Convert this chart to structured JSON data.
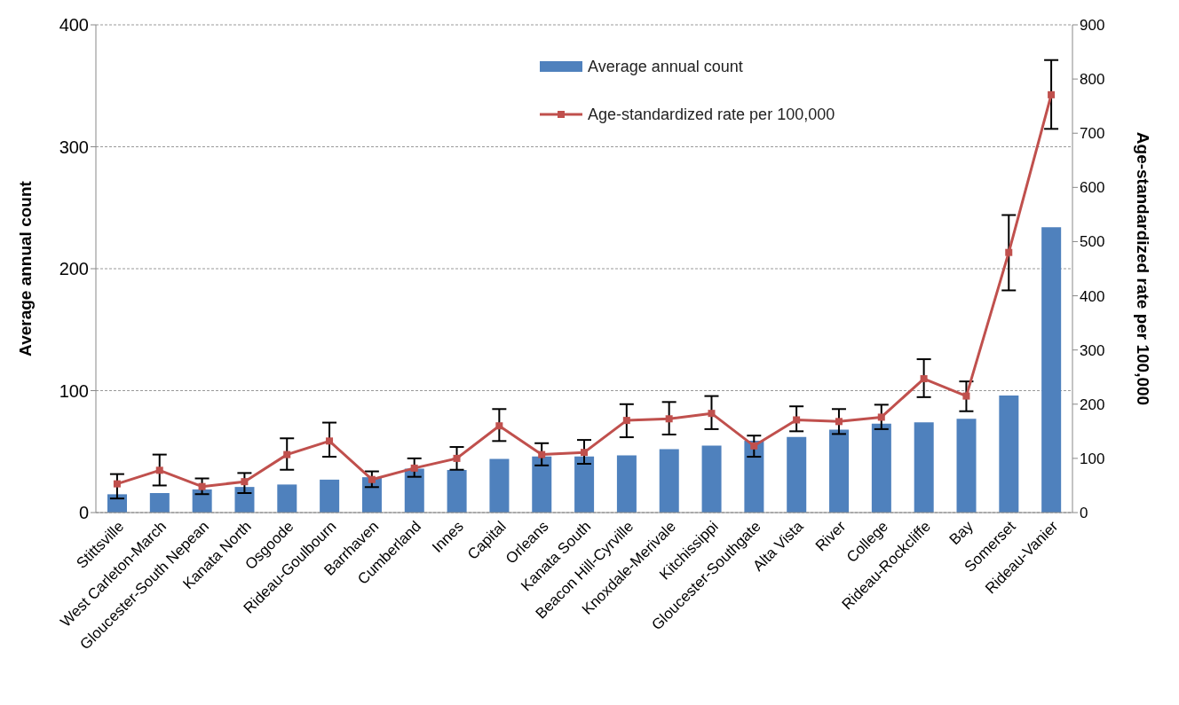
{
  "chart_data": {
    "type": "bar",
    "ylabel": "Average annual count",
    "y2label": "Age-standardized rate per 100,000",
    "categories": [
      "Stittsville",
      "West Carleton-March",
      "Gloucester-South Nepean",
      "Kanata North",
      "Osgoode",
      "Rideau-Goulbourn",
      "Barrhaven",
      "Cumberland",
      "Innes",
      "Capital",
      "Orleans",
      "Kanata South",
      "Beacon Hill-Cyrville",
      "Knoxdale-Merivale",
      "Kitchissippi",
      "Gloucester-Southgate",
      "Alta Vista",
      "River",
      "College",
      "Rideau-Rockcliffe",
      "Bay",
      "Somerset",
      "Rideau-Vanier"
    ],
    "series": [
      {
        "name": "Average annual count",
        "color": "#4f81bd",
        "values": [
          15,
          16,
          19,
          21,
          23,
          27,
          29,
          36,
          35,
          44,
          46,
          46,
          47,
          52,
          55,
          59,
          62,
          68,
          73,
          74,
          77,
          96,
          234
        ]
      },
      {
        "name": "Age-standardized rate per 100,000",
        "type": "line",
        "axis": "y2",
        "color": "#c0504d",
        "marker": "square",
        "values": [
          53,
          78,
          48,
          57,
          107,
          132,
          61,
          82,
          100,
          160,
          107,
          111,
          170,
          173,
          183,
          123,
          171,
          168,
          176,
          247,
          215,
          480,
          771
        ],
        "errors": [
          [
            26,
            71
          ],
          [
            50,
            107
          ],
          [
            34,
            63
          ],
          [
            36,
            73
          ],
          [
            79,
            137
          ],
          [
            103,
            166
          ],
          [
            47,
            76
          ],
          [
            66,
            100
          ],
          [
            79,
            121
          ],
          [
            132,
            191
          ],
          [
            87,
            128
          ],
          [
            90,
            134
          ],
          [
            139,
            200
          ],
          [
            144,
            204
          ],
          [
            154,
            215
          ],
          [
            103,
            142
          ],
          [
            150,
            196
          ],
          [
            145,
            191
          ],
          [
            154,
            199
          ],
          [
            213,
            283
          ],
          [
            187,
            242
          ],
          [
            410,
            549
          ],
          [
            708,
            835
          ]
        ]
      }
    ],
    "ylim": [
      0,
      400
    ],
    "yticks": [
      0,
      100,
      200,
      300,
      400
    ],
    "y2lim": [
      0,
      900
    ],
    "y2ticks": [
      0,
      100,
      200,
      300,
      400,
      500,
      600,
      700,
      800,
      900
    ],
    "grid": "y",
    "legend": "top"
  }
}
